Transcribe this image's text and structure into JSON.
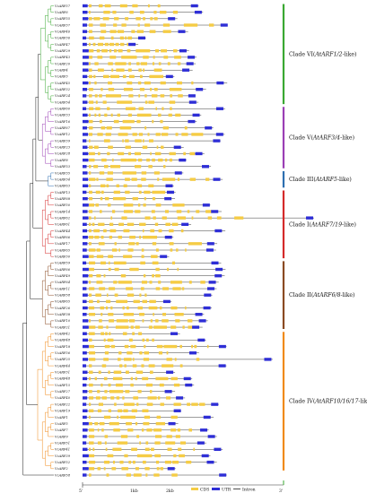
{
  "genes": [
    {
      "name": "VcARF57",
      "clade": "VI"
    },
    {
      "name": "VcARF6",
      "clade": "VI"
    },
    {
      "name": "VcARF55",
      "clade": "VI"
    },
    {
      "name": "VcARF37",
      "clade": "VI"
    },
    {
      "name": "VcARF46",
      "clade": "VI"
    },
    {
      "name": "VcARF36",
      "clade": "VI"
    },
    {
      "name": "VcARF47",
      "clade": "VI"
    },
    {
      "name": "VcARF29",
      "clade": "VI"
    },
    {
      "name": "VcARF43",
      "clade": "VI"
    },
    {
      "name": "VcARF20",
      "clade": "VI"
    },
    {
      "name": "VcARF4",
      "clade": "VI"
    },
    {
      "name": "VcARF3",
      "clade": "VI"
    },
    {
      "name": "VcARF45",
      "clade": "VI"
    },
    {
      "name": "VcARF32",
      "clade": "VI"
    },
    {
      "name": "VcARF24",
      "clade": "VI"
    },
    {
      "name": "VcARF54",
      "clade": "VI"
    },
    {
      "name": "VcARF60",
      "clade": "V"
    },
    {
      "name": "VcARF33",
      "clade": "V"
    },
    {
      "name": "VcARF16",
      "clade": "V"
    },
    {
      "name": "VcARF67",
      "clade": "V"
    },
    {
      "name": "VcARF12",
      "clade": "V"
    },
    {
      "name": "VcARF39",
      "clade": "V"
    },
    {
      "name": "VcARF23",
      "clade": "V"
    },
    {
      "name": "VcARF28",
      "clade": "V"
    },
    {
      "name": "VcARF8",
      "clade": "V"
    },
    {
      "name": "VcARF53",
      "clade": "V"
    },
    {
      "name": "VcARF35",
      "clade": "III"
    },
    {
      "name": "VcARF34",
      "clade": "III"
    },
    {
      "name": "VcARF63",
      "clade": "III"
    },
    {
      "name": "VcARF13",
      "clade": "I"
    },
    {
      "name": "VcARF68",
      "clade": "I"
    },
    {
      "name": "VcARF50",
      "clade": "I"
    },
    {
      "name": "VcARF14",
      "clade": "I"
    },
    {
      "name": "VcARF62",
      "clade": "I"
    },
    {
      "name": "VcARF61",
      "clade": "I"
    },
    {
      "name": "VcARF44",
      "clade": "I"
    },
    {
      "name": "VcARF66",
      "clade": "I"
    },
    {
      "name": "VcARF17",
      "clade": "I"
    },
    {
      "name": "VcARF65",
      "clade": "I"
    },
    {
      "name": "VcARF30",
      "clade": "I"
    },
    {
      "name": "VcARF59",
      "clade": "II"
    },
    {
      "name": "VcARF66",
      "clade": "II"
    },
    {
      "name": "VcARF49",
      "clade": "II"
    },
    {
      "name": "VcARF64",
      "clade": "II"
    },
    {
      "name": "VcARF11",
      "clade": "II"
    },
    {
      "name": "VcARF58",
      "clade": "II"
    },
    {
      "name": "VcARF65",
      "clade": "II"
    },
    {
      "name": "VcARF26",
      "clade": "II"
    },
    {
      "name": "VcARF38",
      "clade": "II"
    },
    {
      "name": "VcARF10",
      "clade": "II"
    },
    {
      "name": "VcARF21",
      "clade": "II"
    },
    {
      "name": "VcARF42",
      "clade": "IV"
    },
    {
      "name": "VcARF48",
      "clade": "IV"
    },
    {
      "name": "VcARF18",
      "clade": "IV"
    },
    {
      "name": "VcARF56",
      "clade": "IV"
    },
    {
      "name": "VcARF25",
      "clade": "IV"
    },
    {
      "name": "VcARF44",
      "clade": "IV"
    },
    {
      "name": "VcARF31",
      "clade": "IV"
    },
    {
      "name": "VcARF48",
      "clade": "IV"
    },
    {
      "name": "VcARF15",
      "clade": "IV"
    },
    {
      "name": "VcARF27",
      "clade": "IV"
    },
    {
      "name": "VcARF40",
      "clade": "IV"
    },
    {
      "name": "VcARF22",
      "clade": "IV"
    },
    {
      "name": "VcARF19",
      "clade": "IV"
    },
    {
      "name": "VcARF1",
      "clade": "IV"
    },
    {
      "name": "VcARF5",
      "clade": "IV"
    },
    {
      "name": "VcARF7",
      "clade": "IV"
    },
    {
      "name": "VcARF9",
      "clade": "IV"
    },
    {
      "name": "VcARF51",
      "clade": "IV"
    },
    {
      "name": "VcARF41",
      "clade": "IV"
    },
    {
      "name": "VcARF39",
      "clade": "IV"
    },
    {
      "name": "VcARF52",
      "clade": "IV"
    },
    {
      "name": "VcARF2",
      "clade": "IV"
    },
    {
      "name": "VcARF58",
      "clade": "root"
    }
  ],
  "clades": [
    {
      "id": "VI",
      "prefix": "Clade VI(",
      "italic": "AtARF1/2",
      "suffix": "-like)",
      "color": "#3aa832"
    },
    {
      "id": "V",
      "prefix": "Clade V(",
      "italic": "AtARF3/4",
      "suffix": "-like)",
      "color": "#9b3fb5"
    },
    {
      "id": "III",
      "prefix": "Clade III(",
      "italic": "AtARF5",
      "suffix": "-like)",
      "color": "#2e6fb0"
    },
    {
      "id": "I",
      "prefix": "Clade I(",
      "italic": "AtARF7/19",
      "suffix": "-like)",
      "color": "#d42a2a"
    },
    {
      "id": "II",
      "prefix": "Clade II(",
      "italic": "AtARF6/8",
      "suffix": "-like)",
      "color": "#8a4a22"
    },
    {
      "id": "IV",
      "prefix": "Clade IV(",
      "italic": "AtARF10/16/17",
      "suffix": "-like)",
      "color": "#f08a1a"
    }
  ],
  "colors": {
    "cds": "#f5cc45",
    "utr": "#2e2ed6",
    "intron": "#222222",
    "tree_base": "#1a1a1a"
  },
  "legend": {
    "cds": "CDS",
    "utr": "UTR",
    "intron": "Intron"
  },
  "scale": {
    "five_prime": "5'",
    "one_kb": "1kb",
    "two_kb": "2kb",
    "three_prime": "3'"
  }
}
